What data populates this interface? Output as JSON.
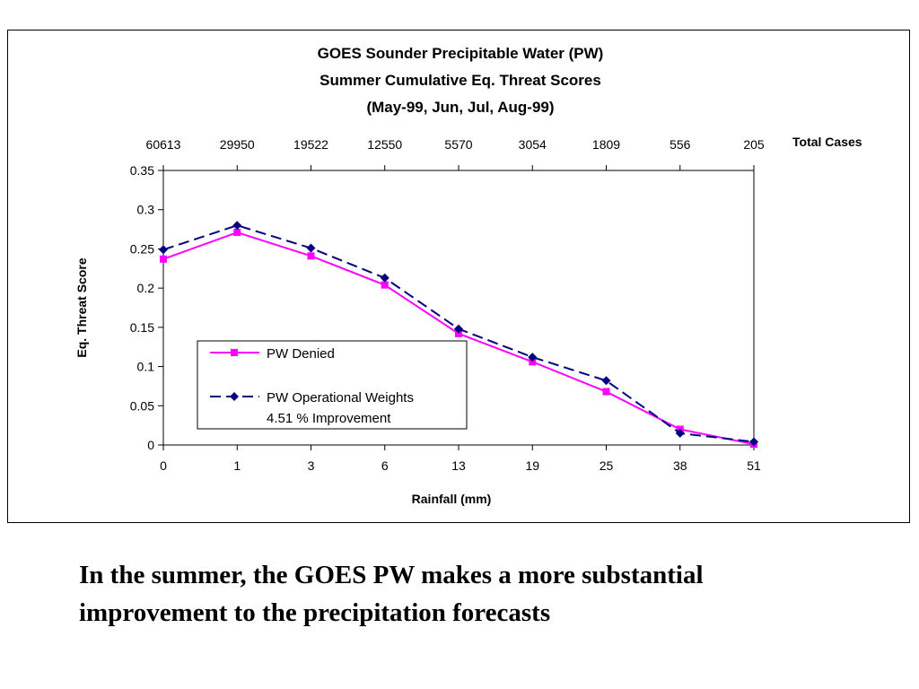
{
  "slide": {
    "caption_lines": [
      "In the summer, the GOES PW makes a more substantial",
      "improvement to the precipitation forecasts"
    ]
  },
  "chart_data": {
    "type": "line",
    "title_lines": [
      "GOES Sounder Precipitable Water (PW)",
      "Summer Cumulative Eq. Threat Scores",
      "(May-99, Jun, Jul, Aug-99)"
    ],
    "xlabel": "Rainfall (mm)",
    "ylabel": "Eq. Threat Score",
    "categories": [
      "0",
      "1",
      "3",
      "6",
      "13",
      "19",
      "25",
      "38",
      "51"
    ],
    "top_axis": {
      "label": "Total Cases",
      "values": [
        "60613",
        "29950",
        "19522",
        "12550",
        "5570",
        "3054",
        "1809",
        "556",
        "205"
      ]
    },
    "ylim": [
      0,
      0.35
    ],
    "y_ticks": [
      "0",
      "0.05",
      "0.1",
      "0.15",
      "0.2",
      "0.25",
      "0.3",
      "0.35"
    ],
    "grid": false,
    "legend": {
      "placement": "bottom-left",
      "note": "4.51 % Improvement"
    },
    "series": [
      {
        "name": "PW Denied",
        "color": "#ff00ff",
        "marker": "square",
        "line_style": "solid",
        "values": [
          0.237,
          0.271,
          0.241,
          0.204,
          0.142,
          0.106,
          0.068,
          0.02,
          0.001
        ]
      },
      {
        "name": "PW Operational Weights",
        "color": "#000080",
        "marker": "diamond",
        "line_style": "dashed",
        "values": [
          0.249,
          0.28,
          0.251,
          0.213,
          0.148,
          0.112,
          0.082,
          0.015,
          0.004
        ]
      }
    ]
  }
}
